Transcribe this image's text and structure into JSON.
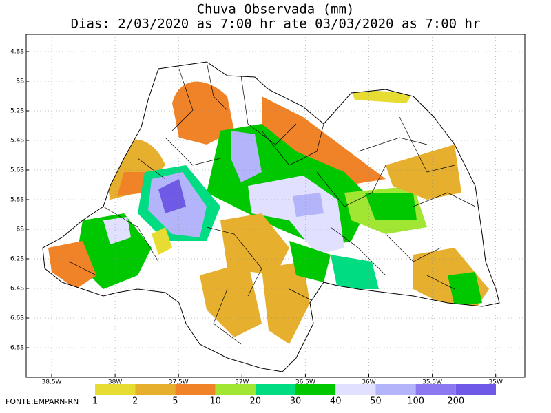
{
  "title": [
    "Chuva Observada (mm)",
    "Dias: 2/03/2020 as 7:00 hr ate 03/03/2020 as 7:00 hr"
  ],
  "lat_ticks": [
    "4.8S",
    "5S",
    "5.2S",
    "5.4S",
    "5.6S",
    "5.8S",
    "6S",
    "6.2S",
    "6.4S",
    "6.6S",
    "6.8S"
  ],
  "lon_ticks": [
    "38.5W",
    "38W",
    "37.5W",
    "37W",
    "36.5W",
    "36W",
    "35.5W",
    "35W"
  ],
  "legend": {
    "labels": [
      "1",
      "2",
      "5",
      "10",
      "20",
      "30",
      "40",
      "50",
      "100",
      "200"
    ],
    "colors": [
      "#e6dc32",
      "#e6af2d",
      "#f08228",
      "#a0e632",
      "#00dc82",
      "#00c800",
      "#e1e1ff",
      "#b4b4fa",
      "#8c78f0",
      "#6e5ae6"
    ]
  },
  "source": "FONTE:EMPARN-RN"
}
